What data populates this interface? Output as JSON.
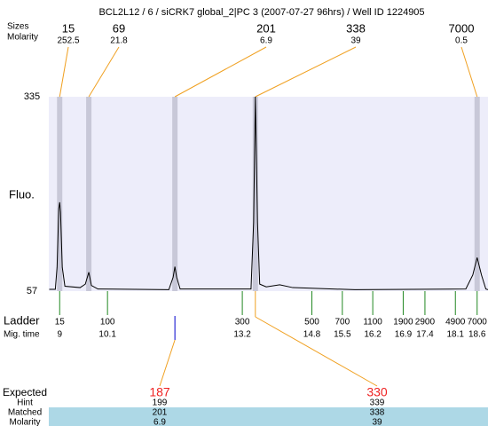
{
  "chart_data": {
    "type": "line",
    "title": "BCL2L12 / 6 / siCRK7 global_2|PC 3 (2007-07-27 96hrs) / Well ID 1224905",
    "peak_row_labels": [
      "Sizes",
      "Molarity"
    ],
    "peaks": {
      "sizes": [
        15,
        69,
        201,
        338,
        7000
      ],
      "molarity": [
        252.5,
        21.8,
        6.9,
        39,
        0.5
      ],
      "x": [
        9,
        9.67,
        11.65,
        13.5,
        18.6
      ]
    },
    "ylabel": "Fluo.",
    "ylim": [
      57,
      335
    ],
    "yticks": [
      57,
      335
    ],
    "xlim": [
      8.75,
      18.85
    ],
    "color": "#000000",
    "x": [
      8.76,
      8.9,
      8.94,
      8.98,
      9.0,
      9.02,
      9.06,
      9.12,
      9.47,
      9.59,
      9.67,
      9.73,
      9.88,
      11.51,
      11.61,
      11.65,
      11.69,
      11.77,
      13.4,
      13.46,
      13.5,
      13.55,
      13.6,
      13.75,
      14.06,
      14.36,
      15.79,
      18.34,
      18.5,
      18.6,
      18.7,
      18.8,
      18.85
    ],
    "values": [
      59.5,
      59.5,
      91,
      175,
      184,
      170,
      91,
      64,
      62,
      67,
      84,
      65,
      60,
      59,
      77,
      92,
      77,
      60,
      60,
      155,
      335,
      155,
      67,
      63,
      66,
      62,
      59,
      60,
      80,
      105,
      80,
      60,
      59
    ],
    "ladder": {
      "label": "Ladder",
      "time_label": "Mig. time",
      "sizes": [
        15,
        100,
        300,
        500,
        700,
        1100,
        1900,
        2900,
        4900,
        7000
      ],
      "times": [
        9,
        10.1,
        13.2,
        14.8,
        15.5,
        16.2,
        16.9,
        17.4,
        18.1,
        18.6
      ]
    },
    "expected": {
      "labels": [
        "Expected",
        "Hint",
        "Matched",
        "Molarity"
      ],
      "columns": [
        {
          "expected": 187,
          "hint": 199,
          "matched": 201,
          "molarity": 6.9
        },
        {
          "expected": 330,
          "hint": 339,
          "matched": 338,
          "molarity": 39
        }
      ]
    }
  }
}
